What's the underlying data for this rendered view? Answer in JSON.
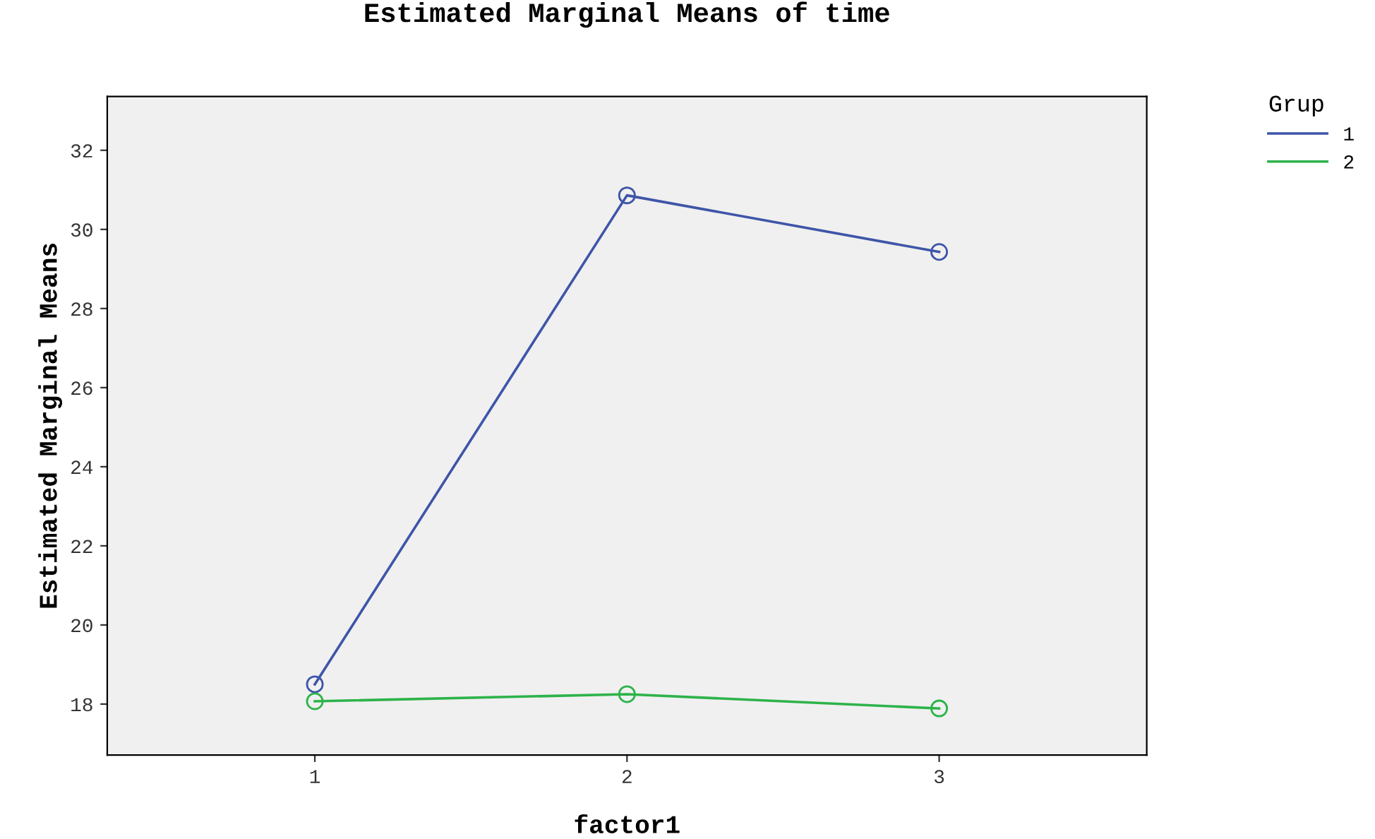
{
  "chart_data": {
    "type": "line",
    "title": "Estimated Marginal Means of time",
    "xlabel": "factor1",
    "ylabel": "Estimated Marginal Means",
    "legend_title": "Grup",
    "categories": [
      "1",
      "2",
      "3"
    ],
    "series": [
      {
        "name": "1",
        "color": "#3e55a8",
        "values": [
          18.5,
          30.86,
          29.43
        ]
      },
      {
        "name": "2",
        "color": "#2db34a",
        "values": [
          18.07,
          18.25,
          17.89
        ]
      }
    ],
    "ylim": [
      16.71,
      33.36
    ],
    "yticks": [
      18,
      20,
      22,
      24,
      26,
      28,
      30,
      32
    ],
    "grid": false,
    "legend": "top right",
    "marker": "circle",
    "line_style": "solid"
  }
}
